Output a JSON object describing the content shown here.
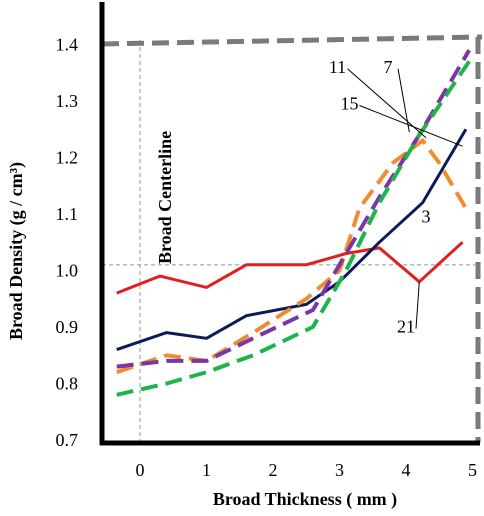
{
  "chart_data": {
    "type": "line",
    "xlabel": "Broad Thickness ( mm )",
    "ylabel": "Broad Density (g / cm³)",
    "xlim": [
      -0.55,
      5.0
    ],
    "ylim": [
      0.7,
      1.42
    ],
    "x_ticks": [
      "0",
      "1",
      "2",
      "3",
      "4",
      "5"
    ],
    "y_ticks": [
      "0.7",
      "0.8",
      "0.9",
      "1.0",
      "1.1",
      "1.2",
      "1.3",
      "1.4"
    ],
    "grid": false,
    "reference_lines": {
      "horizontal_y": 1.01,
      "vertical_x": 0.0,
      "vertical_label": "Broad Centerline",
      "frame_top_y": 1.41,
      "frame_right_x": 5.0
    },
    "series": [
      {
        "name": "21",
        "color": "#e02020",
        "dash": "solid",
        "x": [
          -0.35,
          0.3,
          1.0,
          1.6,
          2.5,
          3.1,
          3.6,
          4.2,
          4.85
        ],
        "y": [
          0.96,
          0.99,
          0.97,
          1.01,
          1.01,
          1.03,
          1.04,
          0.98,
          1.05
        ]
      },
      {
        "name": "15",
        "color": "#0d1a5a",
        "dash": "solid",
        "x": [
          -0.35,
          0.4,
          1.0,
          1.6,
          2.5,
          3.0,
          3.6,
          4.25,
          4.9
        ],
        "y": [
          0.86,
          0.89,
          0.88,
          0.92,
          0.94,
          0.98,
          1.05,
          1.12,
          1.25
        ]
      },
      {
        "name": "3",
        "color": "#f08c30",
        "dash": "dash",
        "x": [
          -0.35,
          0.4,
          1.0,
          1.7,
          2.5,
          3.0,
          3.3,
          3.8,
          4.25,
          4.5,
          4.9
        ],
        "y": [
          0.82,
          0.85,
          0.84,
          0.89,
          0.95,
          1.0,
          1.11,
          1.19,
          1.23,
          1.19,
          1.11
        ]
      },
      {
        "name": "7",
        "color": "#7a35a8",
        "dash": "dash",
        "x": [
          -0.35,
          0.4,
          1.0,
          1.7,
          2.6,
          3.1,
          3.6,
          4.2,
          4.95
        ],
        "y": [
          0.83,
          0.84,
          0.84,
          0.88,
          0.93,
          1.03,
          1.13,
          1.24,
          1.39
        ]
      },
      {
        "name": "11",
        "color": "#1db44a",
        "dash": "dash",
        "x": [
          -0.35,
          0.4,
          1.0,
          1.7,
          2.6,
          3.1,
          3.6,
          4.2,
          4.95
        ],
        "y": [
          0.78,
          0.8,
          0.82,
          0.85,
          0.9,
          1.0,
          1.12,
          1.24,
          1.37
        ]
      }
    ],
    "callouts": [
      {
        "label": "11",
        "series": "11",
        "tx": 2.97,
        "ty": 1.35,
        "px": 4.3,
        "py": 1.235
      },
      {
        "label": "7",
        "series": "7",
        "tx": 3.73,
        "ty": 1.35,
        "px": 4.05,
        "py": 1.245
      },
      {
        "label": "15",
        "series": "15",
        "tx": 3.15,
        "ty": 1.285,
        "px": 4.85,
        "py": 1.22
      },
      {
        "label": "3",
        "series": "3",
        "tx": 4.3,
        "ty": 1.085,
        "px": null,
        "py": null
      },
      {
        "label": "21",
        "series": "21",
        "tx": 4.0,
        "ty": 0.89,
        "px": 4.2,
        "py": 0.98
      }
    ]
  }
}
